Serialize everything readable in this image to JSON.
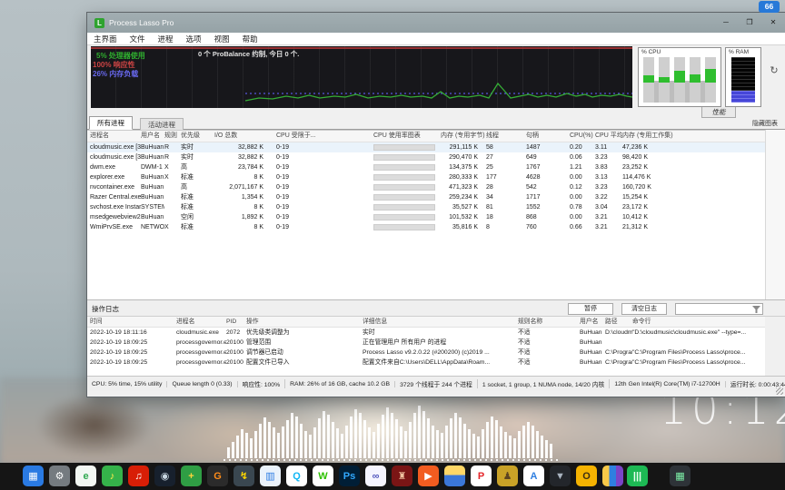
{
  "badge": {
    "value": "66"
  },
  "win": {
    "title": "Process Lasso Pro",
    "app_icon_glyph": "L",
    "controls": {
      "minimize": "─",
      "maximize": "❒",
      "close": "✕"
    },
    "menu": [
      "主界面",
      "文件",
      "进程",
      "选项",
      "视图",
      "帮助"
    ],
    "graph": {
      "cpu_text": "5% 处理器使用",
      "resp_text": "100% 响应性",
      "mem_text": "26% 内存负载",
      "probalance_text": "0 个 ProBalance 约制, 今日 0 个.",
      "perf_tab": "性能",
      "cpu_meter_label": "% CPU",
      "ram_meter_label": "% RAM",
      "refresh_glyph": "↻",
      "cpu_meter_bars": [
        8,
        6,
        13,
        9,
        15
      ],
      "ram_fill_pct": 26,
      "colors": {
        "cpu": "#2fae2f",
        "responsiveness": "#cc4444",
        "memory": "#6868ee"
      }
    },
    "tabs": [
      {
        "label": "所有进程",
        "active": true
      },
      {
        "label": "活动进程",
        "active": false
      }
    ],
    "hide_graph_label": "隐藏图表",
    "ptable": {
      "columns": [
        "进程名",
        "用户名",
        "规则",
        "优先级",
        "I/O 总数",
        "CPU 受限于...",
        "CPU 使用率图表",
        "内存 (专用字节)",
        "线程",
        "句柄",
        "CPU(%)",
        "CPU 平均",
        "内存 (专用工作集)"
      ],
      "rows": [
        {
          "name": "cloudmusic.exe [32]",
          "user": "BuHuan",
          "rule": "R",
          "priority": "实时",
          "io": "32,882 K",
          "affinity": "0-19",
          "mem_bytes": "291,115 K",
          "threads": "58",
          "handles": "1487",
          "cpu": "0.20",
          "cpu_avg": "3.11",
          "mem_ws": "47,236 K",
          "selected": true
        },
        {
          "name": "cloudmusic.exe [32]",
          "user": "BuHuan",
          "rule": "R",
          "priority": "实时",
          "io": "32,882 K",
          "affinity": "0-19",
          "mem_bytes": "290,470 K",
          "threads": "27",
          "handles": "649",
          "cpu": "0.06",
          "cpu_avg": "3.23",
          "mem_ws": "98,420 K",
          "selected": false
        },
        {
          "name": "dwm.exe",
          "user": "DWM-1",
          "rule": "X",
          "priority": "高",
          "io": "23,784 K",
          "affinity": "0-19",
          "mem_bytes": "134,375 K",
          "threads": "25",
          "handles": "1767",
          "cpu": "1.21",
          "cpu_avg": "3.83",
          "mem_ws": "23,252 K",
          "selected": false
        },
        {
          "name": "explorer.exe",
          "user": "BuHuan",
          "rule": "X",
          "priority": "标准",
          "io": "8 K",
          "affinity": "0-19",
          "mem_bytes": "280,333 K",
          "threads": "177",
          "handles": "4628",
          "cpu": "0.00",
          "cpu_avg": "3.13",
          "mem_ws": "114,476 K",
          "selected": false
        },
        {
          "name": "nvcontainer.exe",
          "user": "BuHuan",
          "rule": "",
          "priority": "高",
          "io": "2,071,167 K",
          "affinity": "0-19",
          "mem_bytes": "471,323 K",
          "threads": "28",
          "handles": "542",
          "cpu": "0.12",
          "cpu_avg": "3.23",
          "mem_ws": "160,720 K",
          "selected": false
        },
        {
          "name": "Razer Central.exe [32]",
          "user": "BuHuan",
          "rule": "",
          "priority": "标准",
          "io": "1,354 K",
          "affinity": "0-19",
          "mem_bytes": "259,234 K",
          "threads": "34",
          "handles": "1717",
          "cpu": "0.00",
          "cpu_avg": "3.22",
          "mem_ws": "15,254 K",
          "selected": false
        },
        {
          "name": "svchost.exe Instance ...",
          "user": "SYSTEM",
          "rule": "",
          "priority": "标准",
          "io": "8 K",
          "affinity": "0-19",
          "mem_bytes": "35,527 K",
          "threads": "81",
          "handles": "1552",
          "cpu": "0.78",
          "cpu_avg": "3.04",
          "mem_ws": "23,172 K",
          "selected": false
        },
        {
          "name": "msedgewebview2.exe",
          "user": "BuHuan",
          "rule": "",
          "priority": "空闲",
          "io": "1,892 K",
          "affinity": "0-19",
          "mem_bytes": "101,532 K",
          "threads": "18",
          "handles": "868",
          "cpu": "0.00",
          "cpu_avg": "3.21",
          "mem_ws": "10,412 K",
          "selected": false
        },
        {
          "name": "WmiPrvSE.exe",
          "user": "NETWORK S...",
          "rule": "X",
          "priority": "标准",
          "io": "8 K",
          "affinity": "0-19",
          "mem_bytes": "35,816 K",
          "threads": "8",
          "handles": "760",
          "cpu": "0.66",
          "cpu_avg": "3.21",
          "mem_ws": "21,312 K",
          "selected": false
        }
      ]
    },
    "log": {
      "title": "操作日志",
      "pause_button": "暂停",
      "clear_button": "清空日志",
      "columns": [
        "时间",
        "进程名",
        "PID",
        "操作",
        "详细信息",
        "规则名称",
        "用户名",
        "路径",
        "命令行"
      ],
      "rows": [
        {
          "time": "2022-10-19 18:11:16",
          "name": "cloudmusic.exe",
          "pid": "2072",
          "action": "优先级类调整为",
          "detail": "实时",
          "rule": "不适",
          "user": "BuHuan",
          "path": "D:\\cloudmusic...",
          "cmd": "\"D:\\cloudmusic\\cloudmusic.exe\" --type=..."
        },
        {
          "time": "2022-10-19 18:09:25",
          "name": "processgovernor.exe",
          "pid": "20100",
          "action": "管理范围",
          "detail": "正在管理用户 所有用户 的进程",
          "rule": "不适",
          "user": "BuHuan",
          "path": "",
          "cmd": ""
        },
        {
          "time": "2022-10-19 18:09:25",
          "name": "processgovernor.exe",
          "pid": "20100",
          "action": "调节器已启动",
          "detail": "Process Lasso v9.2.0.22 (#200200) (c)2019 ...",
          "rule": "不适",
          "user": "BuHuan",
          "path": "C:\\Program F...",
          "cmd": "\"C:\\Program Files\\Process Lasso\\proce..."
        },
        {
          "time": "2022-10-19 18:09:25",
          "name": "processgovernor.exe",
          "pid": "20100",
          "action": "配置文件已导入",
          "detail": "配置文件来自C:\\Users\\DELL\\AppData\\Roam...",
          "rule": "不适",
          "user": "BuHuan",
          "path": "C:\\Program F...",
          "cmd": "\"C:\\Program Files\\Process Lasso\\proce..."
        }
      ]
    },
    "statusbar": [
      "CPU: 5% time, 15% utility",
      "Queue length 0 (0.33)",
      "响应性: 100%",
      "RAM: 26% of 16 GB, cache 10.2 GB",
      "3729 个线程于 244 个进程",
      "1 socket, 1 group, 1 NUMA node, 14/20 内核",
      "12th Gen Intel(R) Core(TM) i7-12700H",
      "运行时长: 0:00:43:44",
      "Process"
    ]
  },
  "desktop": {
    "clock": "10:12",
    "visualizer": [
      12,
      18,
      25,
      32,
      28,
      22,
      30,
      38,
      45,
      40,
      34,
      28,
      35,
      42,
      50,
      46,
      38,
      30,
      26,
      34,
      44,
      52,
      48,
      40,
      33,
      27,
      36,
      46,
      54,
      50,
      42,
      34,
      29,
      38,
      48,
      56,
      50,
      43,
      35,
      30,
      40,
      50,
      58,
      52,
      44,
      36,
      31,
      28,
      36,
      44,
      50,
      45,
      38,
      32,
      27,
      24,
      32,
      40,
      46,
      42,
      35,
      29,
      25,
      22,
      30,
      36,
      40,
      36,
      30,
      25,
      20,
      16
    ]
  },
  "taskbar": {
    "icons": [
      {
        "name": "blue-tile-app-icon",
        "bg": "#2a7ae2",
        "glyph": "▦",
        "fg": "#ffffff"
      },
      {
        "name": "settings-gear-icon",
        "bg": "#757b80",
        "glyph": "⚙",
        "fg": "#ffffff"
      },
      {
        "name": "browser-e-icon",
        "bg": "#f2f7f2",
        "glyph": "e",
        "fg": "#2fa84f"
      },
      {
        "name": "music-note-green-icon",
        "bg": "#35b24a",
        "glyph": "♪",
        "fg": "#ffe94e"
      },
      {
        "name": "netease-music-icon",
        "bg": "#d81e06",
        "glyph": "♫",
        "fg": "#ffffff"
      },
      {
        "name": "steam-icon",
        "bg": "#17202d",
        "glyph": "◉",
        "fg": "#c7d5e0"
      },
      {
        "name": "shield-green-icon",
        "bg": "#2f9e44",
        "glyph": "+",
        "fg": "#ffd43b"
      },
      {
        "name": "g-launcher-icon",
        "bg": "#2b2b2b",
        "glyph": "G",
        "fg": "#ff8c1a"
      },
      {
        "name": "flash-tool-icon",
        "bg": "#3a4750",
        "glyph": "↯",
        "fg": "#ffd700"
      },
      {
        "name": "system-monitor-icon",
        "bg": "#eaf2fb",
        "glyph": "▥",
        "fg": "#2a7ae2"
      },
      {
        "name": "qq-icon",
        "bg": "#ffffff",
        "glyph": "Q",
        "fg": "#12b7f5"
      },
      {
        "name": "wechat-icon",
        "bg": "#ffffff",
        "glyph": "W",
        "fg": "#2dc100"
      },
      {
        "name": "photoshop-icon",
        "bg": "#001e36",
        "glyph": "Ps",
        "fg": "#31a8ff"
      },
      {
        "name": "rings-tool-icon",
        "bg": "#f5f5ff",
        "glyph": "∞",
        "fg": "#5156be"
      },
      {
        "name": "game-red-icon",
        "bg": "#7a1515",
        "glyph": "♜",
        "fg": "#f0c2a0"
      },
      {
        "name": "video-player-orange-icon",
        "bg": "#f25c20",
        "glyph": "▶",
        "fg": "#ffffff"
      },
      {
        "name": "folder-icon",
        "bg": "linear-gradient(180deg,#ffd766 45%,#3b77d8 45%)",
        "glyph": "",
        "fg": "#ffffff"
      },
      {
        "name": "pdf-doc-icon",
        "bg": "#ffffff",
        "glyph": "P",
        "fg": "#e5252a"
      },
      {
        "name": "game-character-icon",
        "bg": "#c9a227",
        "glyph": "♟",
        "fg": "#5d4420"
      },
      {
        "name": "a-writer-icon",
        "bg": "#ffffff",
        "glyph": "A",
        "fg": "#2f7fe0"
      },
      {
        "name": "v-shield-dark-icon",
        "bg": "#23262b",
        "glyph": "▼",
        "fg": "#aab4c0"
      },
      {
        "name": "owl-yellow-icon",
        "bg": "#f5b301",
        "glyph": "O",
        "fg": "#3c2d12"
      },
      {
        "name": "color-bars-icon",
        "bg": "linear-gradient(90deg,#f7c948 33%,#2f7fe0 33% 66%,#7a44c8 66%)",
        "glyph": "",
        "fg": "#ffffff"
      }
    ],
    "tray": [
      {
        "name": "audio-levels-tray-icon",
        "bg": "#1db954",
        "glyph": "|||",
        "fg": "#eafff0"
      },
      {
        "name": "widget-tray-icon",
        "bg": "#2e3338",
        "glyph": "▦",
        "fg": "#7ef0a8"
      }
    ]
  }
}
